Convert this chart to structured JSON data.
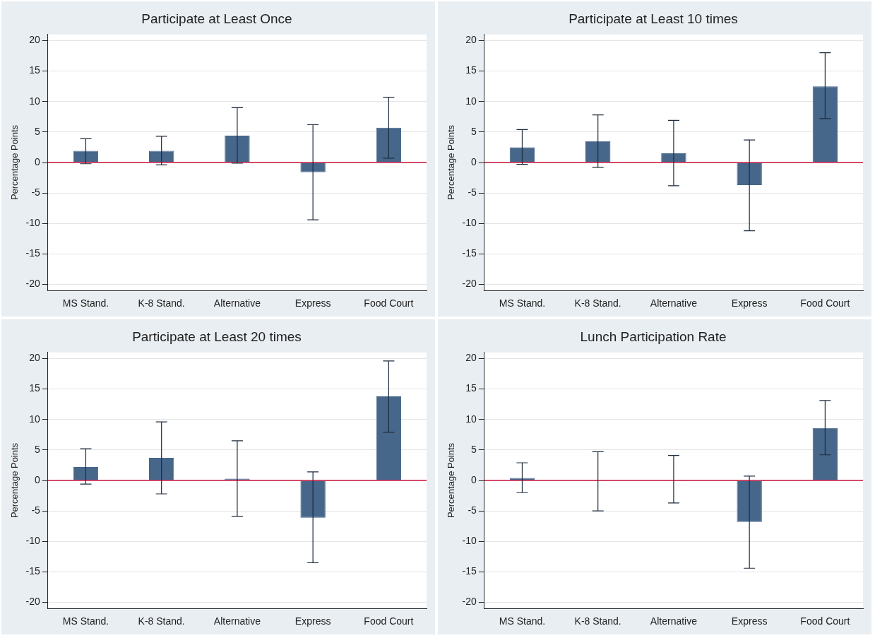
{
  "chart_data": [
    {
      "type": "bar",
      "title": "Participate at Least Once",
      "ylabel": "Percentage Points",
      "categories": [
        "MS Stand.",
        "K-8 Stand.",
        "Alternative",
        "Express",
        "Food Court"
      ],
      "ylim": [
        -21,
        21
      ],
      "yticks": [
        -20,
        -15,
        -10,
        -5,
        0,
        5,
        10,
        15,
        20
      ],
      "grid": "y",
      "ref_lines": [
        {
          "axis": "y",
          "value": 0,
          "color": "#c8143c"
        }
      ],
      "series": [
        {
          "color": "#46668a",
          "values": [
            1.9,
            1.9,
            4.4,
            -1.6,
            5.7
          ],
          "errors": [
            [
              -0.2,
              3.9
            ],
            [
              -0.4,
              4.3
            ],
            [
              -0.1,
              9.0
            ],
            [
              -9.4,
              6.2
            ],
            [
              0.7,
              10.7
            ]
          ]
        }
      ]
    },
    {
      "type": "bar",
      "title": "Participate at Least 10 times",
      "ylabel": "Percentage Points",
      "categories": [
        "MS Stand.",
        "K-8 Stand.",
        "Alternative",
        "Express",
        "Food Court"
      ],
      "ylim": [
        -21,
        21
      ],
      "yticks": [
        -20,
        -15,
        -10,
        -5,
        0,
        5,
        10,
        15,
        20
      ],
      "grid": "y",
      "ref_lines": [
        {
          "axis": "y",
          "value": 0,
          "color": "#c8143c"
        }
      ],
      "series": [
        {
          "color": "#46668a",
          "values": [
            2.5,
            3.5,
            1.5,
            -3.7,
            12.5
          ],
          "errors": [
            [
              -0.3,
              5.4
            ],
            [
              -0.8,
              7.8
            ],
            [
              -3.8,
              6.9
            ],
            [
              -11.2,
              3.7
            ],
            [
              7.2,
              18.0
            ]
          ]
        }
      ]
    },
    {
      "type": "bar",
      "title": "Participate at Least 20 times",
      "ylabel": "Percentage Points",
      "categories": [
        "MS Stand.",
        "K-8 Stand.",
        "Alternative",
        "Express",
        "Food Court"
      ],
      "ylim": [
        -21,
        21
      ],
      "yticks": [
        -20,
        -15,
        -10,
        -5,
        0,
        5,
        10,
        15,
        20
      ],
      "grid": "y",
      "ref_lines": [
        {
          "axis": "y",
          "value": 0,
          "color": "#c8143c"
        }
      ],
      "series": [
        {
          "color": "#46668a",
          "values": [
            2.2,
            3.7,
            0.3,
            -6.1,
            13.8
          ],
          "errors": [
            [
              -0.6,
              5.2
            ],
            [
              -2.2,
              9.6
            ],
            [
              -5.9,
              6.5
            ],
            [
              -13.5,
              1.4
            ],
            [
              7.9,
              19.6
            ]
          ]
        }
      ]
    },
    {
      "type": "bar",
      "title": "Lunch Participation Rate",
      "ylabel": "Percentage Points",
      "categories": [
        "MS Stand.",
        "K-8 Stand.",
        "Alternative",
        "Express",
        "Food Court"
      ],
      "ylim": [
        -21,
        21
      ],
      "yticks": [
        -20,
        -15,
        -10,
        -5,
        0,
        5,
        10,
        15,
        20
      ],
      "grid": "y",
      "ref_lines": [
        {
          "axis": "y",
          "value": 0,
          "color": "#c8143c"
        }
      ],
      "series": [
        {
          "color": "#46668a",
          "values": [
            0.4,
            -0.1,
            0.1,
            -6.8,
            8.6
          ],
          "errors": [
            [
              -2.0,
              2.9
            ],
            [
              -5.0,
              4.7
            ],
            [
              -3.7,
              4.1
            ],
            [
              -14.4,
              0.7
            ],
            [
              4.2,
              13.1
            ]
          ]
        }
      ]
    }
  ]
}
